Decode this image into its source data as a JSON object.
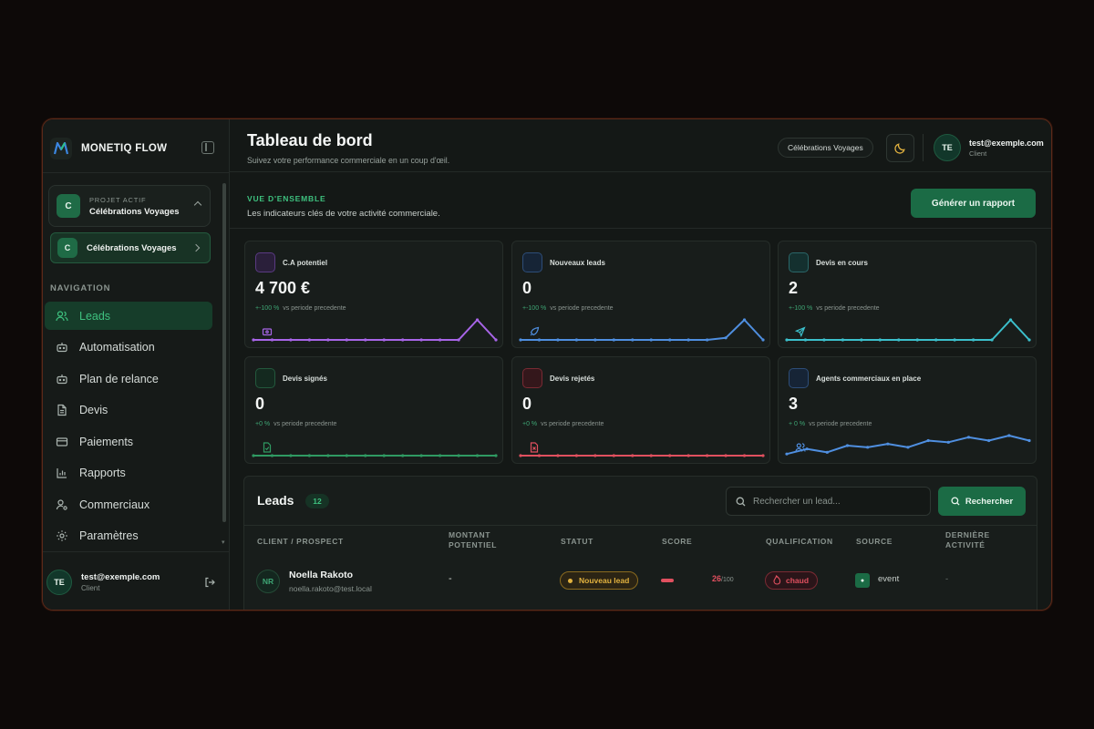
{
  "brand": {
    "name": "MONETIQ FLOW"
  },
  "project": {
    "kicker": "PROJET ACTIF",
    "active_name": "Célébrations Voyages",
    "avatar": "C",
    "item_name": "Célébrations Voyages",
    "item_avatar": "C"
  },
  "sidebar": {
    "nav_label": "NAVIGATION",
    "items": [
      {
        "label": "Leads",
        "icon": "users-icon"
      },
      {
        "label": "Automatisation",
        "icon": "bot-icon"
      },
      {
        "label": "Plan de relance",
        "icon": "bot-icon"
      },
      {
        "label": "Devis",
        "icon": "document-icon"
      },
      {
        "label": "Paiements",
        "icon": "credit-card-icon"
      },
      {
        "label": "Rapports",
        "icon": "bar-chart-icon"
      },
      {
        "label": "Commerciaux",
        "icon": "user-cog-icon"
      },
      {
        "label": "Paramètres",
        "icon": "gear-icon"
      }
    ],
    "active_index": 0
  },
  "user": {
    "avatar": "TE",
    "email": "test@exemple.com",
    "role": "Client"
  },
  "header": {
    "title": "Tableau de bord",
    "subtitle": "Suivez votre performance commerciale en un coup d'œil.",
    "project_pill": "Célébrations Voyages"
  },
  "overview": {
    "kicker": "VUE D'ENSEMBLE",
    "subtitle": "Les indicateurs clés de votre activité commerciale.",
    "report_button": "Générer un rapport"
  },
  "kpis": [
    {
      "title": "C.A potentiel",
      "value": "4 700 €",
      "delta": "+-100 %",
      "delta_label": "vs periode precedente",
      "color": "#a865e8",
      "icon": "wallet-icon",
      "trend": [
        0,
        0,
        0,
        0,
        0,
        0,
        0,
        0,
        0,
        0,
        0,
        0,
        1,
        0
      ]
    },
    {
      "title": "Nouveaux leads",
      "value": "0",
      "delta": "+-100 %",
      "delta_label": "vs periode precedente",
      "color": "#4f8fe0",
      "icon": "rocket-icon",
      "trend": [
        0,
        0,
        0,
        0,
        0,
        0,
        0,
        0,
        0,
        0,
        0,
        0.1,
        1,
        0
      ]
    },
    {
      "title": "Devis en cours",
      "value": "2",
      "delta": "+-100 %",
      "delta_label": "vs periode precedente",
      "color": "#3cc0cc",
      "icon": "send-icon",
      "trend": [
        0,
        0,
        0,
        0,
        0,
        0,
        0,
        0,
        0,
        0,
        0,
        0,
        1,
        0
      ]
    },
    {
      "title": "Devis signés",
      "value": "0",
      "delta": "+0 %",
      "delta_label": "vs periode precedente",
      "color": "#2f9a62",
      "icon": "file-check-icon",
      "trend": [
        0,
        0,
        0,
        0,
        0,
        0,
        0,
        0,
        0,
        0,
        0,
        0,
        0,
        0
      ]
    },
    {
      "title": "Devis rejetés",
      "value": "0",
      "delta": "+0 %",
      "delta_label": "vs periode precedente",
      "color": "#e0505f",
      "icon": "file-x-icon",
      "trend": [
        0,
        0,
        0,
        0,
        0,
        0,
        0,
        0,
        0,
        0,
        0,
        0,
        0,
        0
      ]
    },
    {
      "title": "Agents commerciaux en place",
      "value": "3",
      "delta": "+ 0 %",
      "delta_label": "vs periode precedente",
      "color": "#4f8fe0",
      "icon": "users-icon",
      "trend": [
        0.1,
        0.4,
        0.2,
        0.6,
        0.5,
        0.7,
        0.5,
        0.9,
        0.8,
        1.1,
        0.9,
        1.2,
        0.9
      ]
    }
  ],
  "leads": {
    "title": "Leads",
    "count": "12",
    "search_placeholder": "Rechercher un lead...",
    "search_button": "Rechercher",
    "columns": [
      "CLIENT / PROSPECT",
      "MONTANT POTENTIEL",
      "STATUT",
      "SCORE",
      "QUALIFICATION",
      "SOURCE",
      "DERNIÈRE ACTIVITÉ"
    ],
    "rows": [
      {
        "initials": "NR",
        "name": "Noella Rakoto",
        "email": "noella.rakoto@test.local",
        "amount": "-",
        "status": "Nouveau lead",
        "score": "26",
        "score_max": "/100",
        "qualification": "chaud",
        "source": "event",
        "last_activity": "-"
      }
    ]
  }
}
